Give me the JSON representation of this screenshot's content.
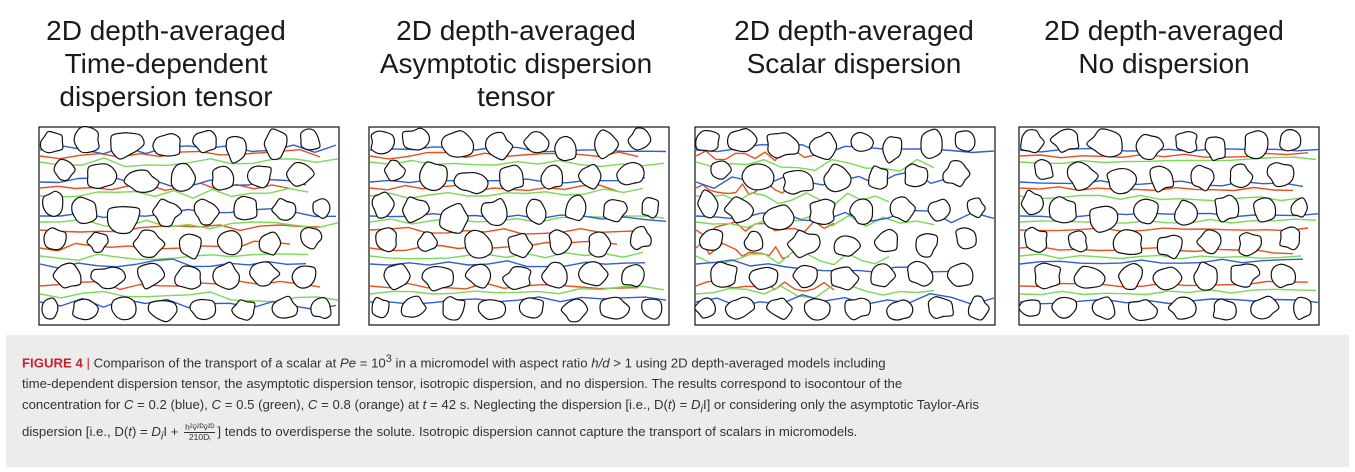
{
  "panels": [
    {
      "title_lines": [
        "2D depth-averaged",
        "Time-dependent",
        "dispersion tensor"
      ]
    },
    {
      "title_lines": [
        "2D depth-averaged",
        "Asymptotic dispersion",
        "tensor"
      ]
    },
    {
      "title_lines": [
        "2D depth-averaged",
        "Scalar dispersion"
      ]
    },
    {
      "title_lines": [
        "2D depth-averaged",
        "No dispersion"
      ]
    }
  ],
  "colors": {
    "grain": "#111111",
    "blue": "#2f5fd0",
    "green": "#7ad957",
    "orange": "#e8501e",
    "caption_bg": "#ececed",
    "label_red": "#c8202d"
  },
  "caption": {
    "label": "FIGURE 4",
    "separator": "|",
    "l1_a": "Comparison of the transport of a scalar at ",
    "l1_pe": "Pe",
    "l1_b": " = 10",
    "l1_exp": "3",
    "l1_c": " in a micromodel with aspect ratio ",
    "l1_hd": "h/d",
    "l1_d": " > 1 using 2D depth-averaged models including",
    "l2": "time-dependent dispersion tensor, the asymptotic dispersion tensor, isotropic dispersion, and no dispersion. The results correspond to isocontour of the",
    "l3_a": "concentration for ",
    "l3_c1": "C",
    "l3_b": " = 0.2 (blue), ",
    "l3_c2": "C",
    "l3_c": " = 0.5 (green), ",
    "l3_c3": "C",
    "l3_d": " = 0.8 (orange) at ",
    "l3_t": "t",
    "l3_e": " = 42 s. Neglecting the dispersion [i.e., D(",
    "l3_t2": "t",
    "l3_f": ") = ",
    "l3_di": "D",
    "l3_isub": "i",
    "l3_g": "I] or considering only the asymptotic Taylor-Aris",
    "l4_a": "dispersion [i.e., D(",
    "l4_t": "t",
    "l4_b": ") = ",
    "l4_di": "D",
    "l4_isub": "i",
    "l4_c": "I + ",
    "l4_frac_num": "h²v̄²ᴰv̄²ᴰ",
    "l4_frac_den": "210Dᵢ",
    "l4_d": "] tends to overdisperse the solute. Isotropic dispersion cannot capture the transport of scalars in micromodels."
  }
}
